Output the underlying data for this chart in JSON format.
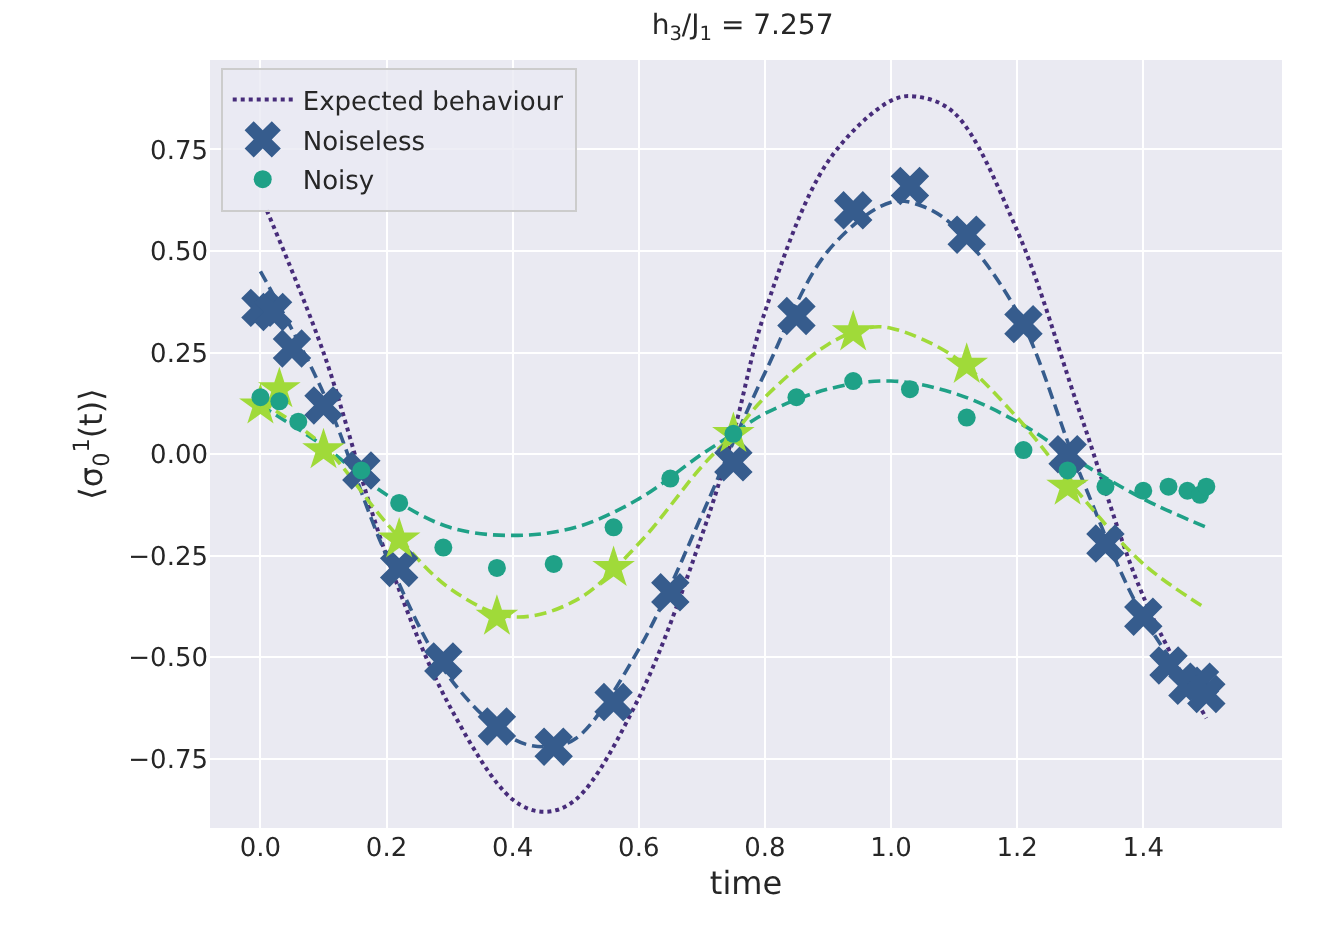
{
  "chart_data": {
    "type": "scatter",
    "title": "h$_{3}$/J$_{1}$ = 7.257",
    "xlabel": "time",
    "ylabel": "⟨σ$_{0}$$^{1}$(t)⟩",
    "xlim": [
      -0.08,
      1.62
    ],
    "ylim": [
      -0.92,
      0.97
    ],
    "xticks": [
      {
        "value": 0,
        "label": "0.0"
      },
      {
        "value": 0.2,
        "label": "0.2"
      },
      {
        "value": 0.4,
        "label": "0.4"
      },
      {
        "value": 0.6,
        "label": "0.6"
      },
      {
        "value": 0.8,
        "label": "0.8"
      },
      {
        "value": 1.0,
        "label": "1.0"
      },
      {
        "value": 1.2,
        "label": "1.2"
      },
      {
        "value": 1.4,
        "label": "1.4"
      }
    ],
    "yticks": [
      {
        "value": -0.75,
        "label": "−0.75"
      },
      {
        "value": -0.5,
        "label": "−0.50"
      },
      {
        "value": -0.25,
        "label": "−0.25"
      },
      {
        "value": 0,
        "label": "0.00"
      },
      {
        "value": 0.25,
        "label": "0.25"
      },
      {
        "value": 0.5,
        "label": "0.50"
      },
      {
        "value": 0.75,
        "label": "0.75"
      }
    ],
    "grid": true,
    "legend": "top left",
    "series": [
      {
        "name": "Expected behaviour",
        "type": "line",
        "line_style": "dotted",
        "color": "#472c7a",
        "x": [
          0.01,
          0.1,
          0.2,
          0.3,
          0.4,
          0.45,
          0.5,
          0.6,
          0.7,
          0.75,
          0.8,
          0.9,
          1.0,
          1.04,
          1.1,
          1.2,
          1.3,
          1.4,
          1.5
        ],
        "values": [
          0.6,
          0.25,
          -0.25,
          -0.62,
          -0.85,
          -0.88,
          -0.85,
          -0.6,
          -0.2,
          0.05,
          0.35,
          0.72,
          0.87,
          0.88,
          0.84,
          0.55,
          0.1,
          -0.35,
          -0.65
        ]
      },
      {
        "name": "Noiseless",
        "marker": "cross",
        "color": "#365c8d",
        "x": [
          0,
          0.02,
          0.05,
          0.1,
          0.16,
          0.22,
          0.29,
          0.375,
          0.465,
          0.56,
          0.65,
          0.75,
          0.85,
          0.94,
          1.03,
          1.12,
          1.21,
          1.28,
          1.34,
          1.4,
          1.44,
          1.47,
          1.49,
          1.5
        ],
        "values": [
          0.36,
          0.35,
          0.26,
          0.12,
          -0.04,
          -0.28,
          -0.51,
          -0.67,
          -0.72,
          -0.61,
          -0.34,
          -0.02,
          0.34,
          0.6,
          0.66,
          0.54,
          0.32,
          0.0,
          -0.22,
          -0.4,
          -0.52,
          -0.57,
          -0.56,
          -0.59
        ]
      },
      {
        "name": "Noisy",
        "marker": "circle",
        "color": "#1fa187",
        "x": [
          0,
          0.03,
          0.06,
          0.16,
          0.22,
          0.29,
          0.375,
          0.465,
          0.56,
          0.65,
          0.75,
          0.85,
          0.94,
          1.03,
          1.12,
          1.21,
          1.28,
          1.34,
          1.4,
          1.44,
          1.47,
          1.49,
          1.5
        ],
        "values": [
          0.14,
          0.13,
          0.08,
          -0.04,
          -0.12,
          -0.23,
          -0.28,
          -0.27,
          -0.18,
          -0.06,
          0.05,
          0.14,
          0.18,
          0.16,
          0.09,
          0.01,
          -0.04,
          -0.08,
          -0.09,
          -0.08,
          -0.09,
          -0.1,
          -0.08
        ]
      },
      {
        "marker": "star",
        "color": "#a0da39",
        "x": [
          0,
          0.03,
          0.1,
          0.22,
          0.375,
          0.56,
          0.75,
          0.94,
          1.12,
          1.28
        ],
        "values": [
          0.12,
          0.16,
          0.01,
          -0.21,
          -0.4,
          -0.28,
          0.05,
          0.3,
          0.22,
          -0.08
        ]
      },
      {
        "type": "line",
        "line_style": "dashed",
        "color": "#365c8d",
        "x": [
          0,
          0.1,
          0.2,
          0.3,
          0.4,
          0.45,
          0.5,
          0.6,
          0.7,
          0.75,
          0.8,
          0.9,
          1.0,
          1.05,
          1.1,
          1.2,
          1.3,
          1.4,
          1.5
        ],
        "values": [
          0.45,
          0.15,
          -0.25,
          -0.55,
          -0.7,
          -0.72,
          -0.7,
          -0.48,
          -0.15,
          0.03,
          0.2,
          0.5,
          0.62,
          0.61,
          0.56,
          0.35,
          -0.05,
          -0.4,
          -0.62
        ]
      },
      {
        "type": "line",
        "line_style": "dashed",
        "color": "#1fa187",
        "x": [
          0,
          0.1,
          0.2,
          0.3,
          0.4,
          0.5,
          0.6,
          0.7,
          0.75,
          0.8,
          0.9,
          1.0,
          1.1,
          1.2,
          1.3,
          1.4,
          1.5
        ],
        "values": [
          0.12,
          0.02,
          -0.1,
          -0.18,
          -0.2,
          -0.18,
          -0.11,
          0.0,
          0.05,
          0.1,
          0.16,
          0.18,
          0.15,
          0.08,
          -0.02,
          -0.11,
          -0.18
        ]
      },
      {
        "type": "line",
        "line_style": "dashed",
        "color": "#a0da39",
        "x": [
          0,
          0.1,
          0.2,
          0.3,
          0.4,
          0.5,
          0.6,
          0.7,
          0.75,
          0.8,
          0.9,
          0.96,
          1.0,
          1.1,
          1.2,
          1.3,
          1.4,
          1.5
        ],
        "values": [
          0.13,
          0.02,
          -0.17,
          -0.33,
          -0.4,
          -0.36,
          -0.22,
          -0.03,
          0.05,
          0.14,
          0.27,
          0.31,
          0.31,
          0.24,
          0.09,
          -0.1,
          -0.27,
          -0.38
        ]
      }
    ]
  }
}
